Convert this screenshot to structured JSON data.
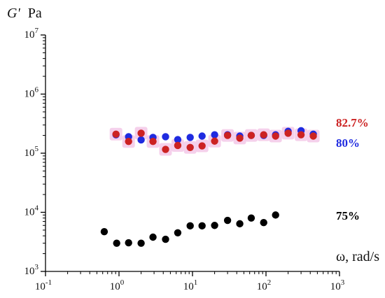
{
  "chart_data": {
    "type": "scatter",
    "title": "",
    "xlabel": "ω, rad/s",
    "ylabel_main": "G'",
    "ylabel_unit": "Pa",
    "x_scale": "log",
    "y_scale": "log",
    "xlim": [
      0.1,
      1000
    ],
    "ylim": [
      1000,
      10000000
    ],
    "grid": false,
    "x_ticks": [
      {
        "value": 0.1,
        "base": "10",
        "exp": "-1"
      },
      {
        "value": 1,
        "base": "10",
        "exp": "0"
      },
      {
        "value": 10,
        "base": "10",
        "exp": "1"
      },
      {
        "value": 100,
        "base": "10",
        "exp": "2"
      },
      {
        "value": 1000,
        "base": "10",
        "exp": "3"
      }
    ],
    "y_ticks": [
      {
        "value": 1000,
        "base": "10",
        "exp": "3"
      },
      {
        "value": 10000,
        "base": "10",
        "exp": "4"
      },
      {
        "value": 100000,
        "base": "10",
        "exp": "5"
      },
      {
        "value": 1000000,
        "base": "10",
        "exp": "6"
      },
      {
        "value": 10000000,
        "base": "10",
        "exp": "7"
      }
    ],
    "series": [
      {
        "name": "82.7%",
        "color": "#cc2222",
        "halo": "#f3c8e8",
        "x": [
          0.91,
          1.35,
          2.0,
          2.9,
          4.3,
          6.3,
          9.3,
          13.5,
          20,
          30,
          44,
          63,
          93,
          135,
          200,
          300,
          440
        ],
        "y": [
          210000,
          158000,
          218000,
          158000,
          116000,
          135000,
          125000,
          133000,
          160000,
          200000,
          180000,
          200000,
          205000,
          195000,
          218000,
          205000,
          195000
        ]
      },
      {
        "name": "80%",
        "color": "#1f2be0",
        "x": [
          0.91,
          1.35,
          2.0,
          2.9,
          4.3,
          6.3,
          9.3,
          13.5,
          20,
          30,
          44,
          63,
          93,
          135,
          200,
          300,
          440
        ],
        "y": [
          205000,
          190000,
          168000,
          185000,
          190000,
          170000,
          185000,
          195000,
          205000,
          205000,
          195000,
          200000,
          200000,
          205000,
          235000,
          240000,
          210000
        ]
      },
      {
        "name": "75%",
        "color": "#000000",
        "x": [
          0.63,
          0.93,
          1.35,
          2.0,
          2.9,
          4.3,
          6.3,
          9.3,
          13.5,
          20,
          30,
          44,
          63,
          93,
          135
        ],
        "y": [
          4700,
          3000,
          3050,
          3000,
          3800,
          3500,
          4500,
          5900,
          5900,
          6000,
          7300,
          6400,
          8000,
          6700,
          9000
        ]
      }
    ]
  }
}
